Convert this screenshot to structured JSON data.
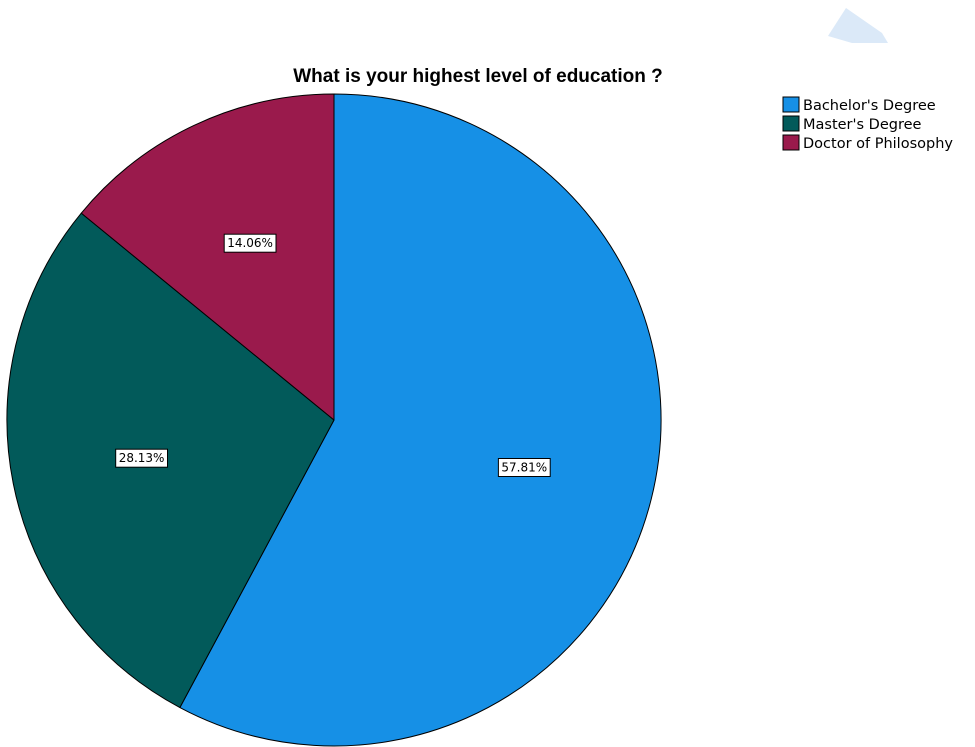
{
  "chart_data": {
    "type": "pie",
    "title": "What is your highest level of education ?",
    "categories": [
      "Bachelor's Degree",
      "Master's Degree",
      "Doctor of Philosophy"
    ],
    "values": [
      57.81,
      28.13,
      14.06
    ],
    "data_labels": [
      "57.81%",
      "28.13%",
      "14.06%"
    ],
    "colors": [
      "#1690e6",
      "#025a5a",
      "#9a1a4c"
    ],
    "legend_position": "top-right",
    "start_angle": "12 o'clock",
    "direction": "clockwise"
  }
}
